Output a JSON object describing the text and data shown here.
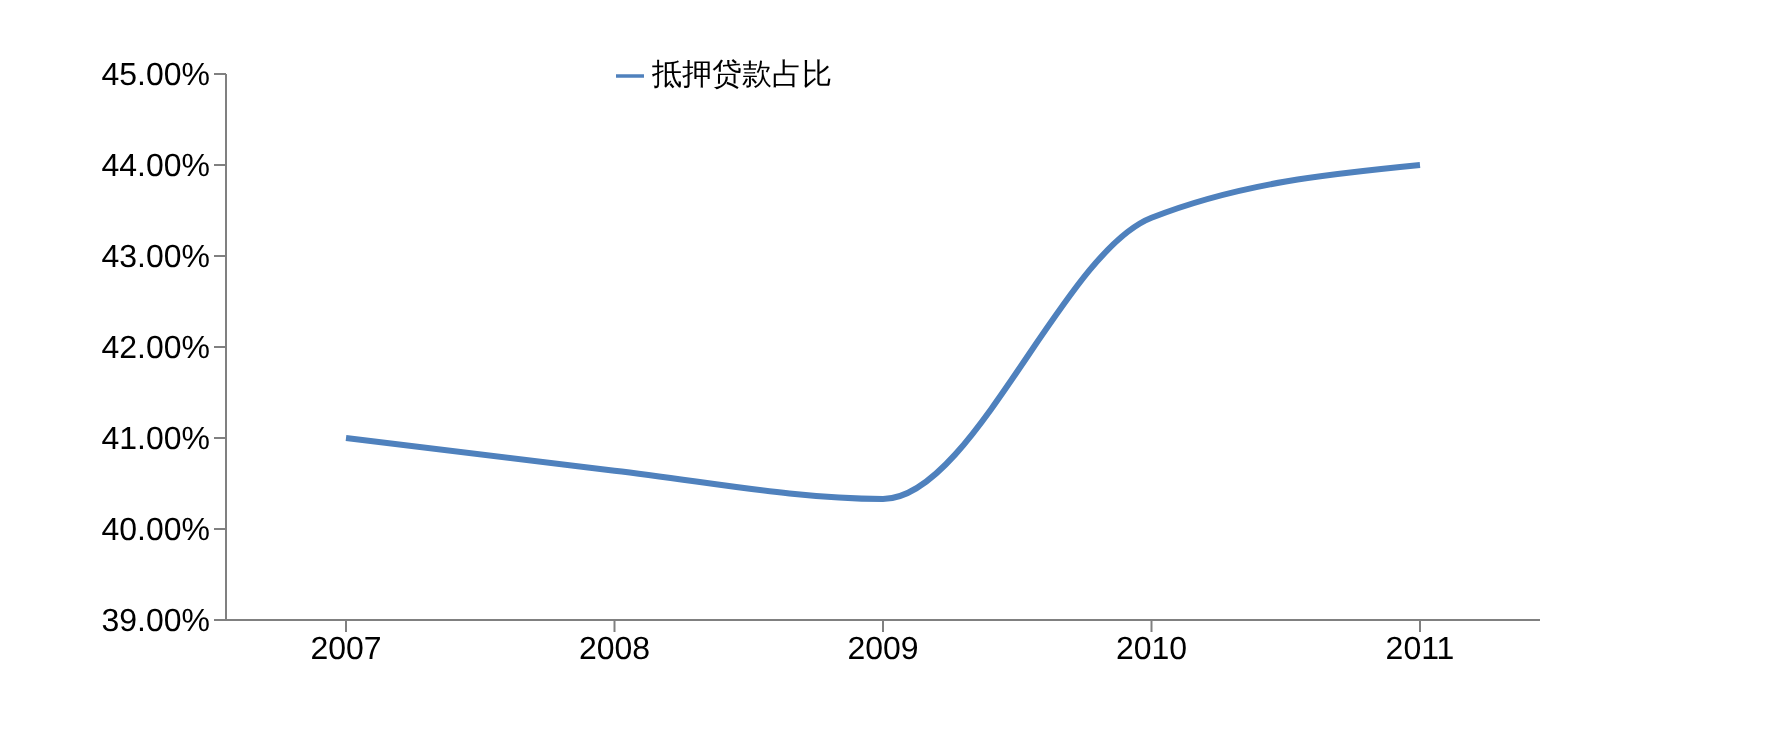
{
  "chart_data": {
    "type": "line",
    "categories": [
      "2007",
      "2008",
      "2009",
      "2010",
      "2011"
    ],
    "series": [
      {
        "name": "抵押贷款占比",
        "color": "#4f81bd",
        "values": [
          41.0,
          40.64,
          40.33,
          43.42,
          44.0
        ]
      }
    ],
    "ylim": [
      39,
      45
    ],
    "yticks": [
      {
        "value": 39,
        "label": "39.00%"
      },
      {
        "value": 40,
        "label": "40.00%"
      },
      {
        "value": 41,
        "label": "41.00%"
      },
      {
        "value": 42,
        "label": "42.00%"
      },
      {
        "value": 43,
        "label": "43.00%"
      },
      {
        "value": 44,
        "label": "44.00%"
      },
      {
        "value": 45,
        "label": "45.00%"
      }
    ],
    "grid": false,
    "legend": "top",
    "marker": "none",
    "line_style": "solid"
  }
}
